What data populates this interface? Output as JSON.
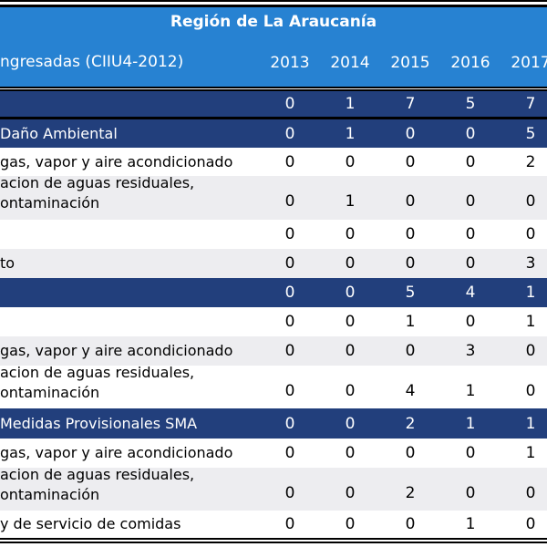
{
  "header": {
    "title": "Región de La Araucanía",
    "subtitle": "ngresadas (CIIU4-2012)",
    "years": [
      "2013",
      "2014",
      "2015",
      "2016",
      "2017"
    ]
  },
  "rows": [
    {
      "label": "",
      "lines": [],
      "values": [
        "0",
        "1",
        "7",
        "5",
        "7"
      ]
    },
    {
      "label": "Daño Ambiental",
      "values": [
        "0",
        "1",
        "0",
        "0",
        "5"
      ]
    },
    {
      "label": "gas, vapor y aire acondicionado",
      "values": [
        "0",
        "0",
        "0",
        "0",
        "2"
      ]
    },
    {
      "label": "acion de aguas residuales,",
      "label2": "ontaminación",
      "values": [
        "0",
        "1",
        "0",
        "0",
        "0"
      ]
    },
    {
      "label": "",
      "values": [
        "0",
        "0",
        "0",
        "0",
        "0"
      ]
    },
    {
      "label": "to",
      "values": [
        "0",
        "0",
        "0",
        "0",
        "3"
      ]
    },
    {
      "label": "",
      "values": [
        "0",
        "0",
        "5",
        "4",
        "1"
      ]
    },
    {
      "label": "",
      "values": [
        "0",
        "0",
        "1",
        "0",
        "1"
      ]
    },
    {
      "label": "gas, vapor y aire acondicionado",
      "values": [
        "0",
        "0",
        "0",
        "3",
        "0"
      ]
    },
    {
      "label": "acion de aguas residuales,",
      "label2": "ontaminación",
      "values": [
        "0",
        "0",
        "4",
        "1",
        "0"
      ]
    },
    {
      "label": "Medidas Provisionales SMA",
      "values": [
        "0",
        "0",
        "2",
        "1",
        "1"
      ]
    },
    {
      "label": "gas, vapor y aire acondicionado",
      "values": [
        "0",
        "0",
        "0",
        "0",
        "1"
      ]
    },
    {
      "label": "acion de aguas residuales,",
      "label2": "ontaminación",
      "values": [
        "0",
        "0",
        "2",
        "0",
        "0"
      ]
    },
    {
      "label": "y de servicio de comidas",
      "values": [
        "0",
        "0",
        "0",
        "1",
        "0"
      ]
    }
  ]
}
